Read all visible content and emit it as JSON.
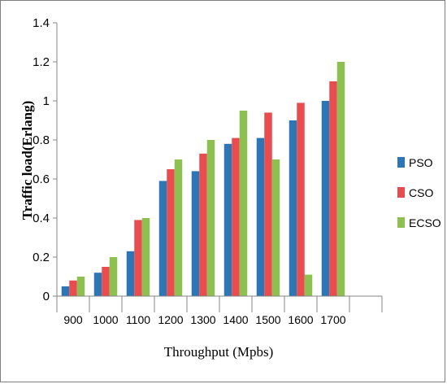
{
  "chart_data": {
    "type": "bar",
    "title": "",
    "xlabel": "Throughput (Mpbs)",
    "ylabel": "Traffic load(Erlang)",
    "categories": [
      "900",
      "1000",
      "1100",
      "1200",
      "1300",
      "1400",
      "1500",
      "1600",
      "1700"
    ],
    "ylim": [
      0,
      1.4
    ],
    "yticks": [
      "0",
      "0.2",
      "0.4",
      "0.6",
      "0.8",
      "1",
      "1.2",
      "1.4"
    ],
    "grid": false,
    "legend": "right",
    "series": [
      {
        "name": "PSO",
        "color": "#2e75b6",
        "values": [
          0.05,
          0.12,
          0.23,
          0.59,
          0.64,
          0.78,
          0.81,
          0.9,
          1.0
        ]
      },
      {
        "name": "CSO",
        "color": "#e84c4f",
        "values": [
          0.08,
          0.15,
          0.39,
          0.65,
          0.73,
          0.81,
          0.94,
          0.99,
          1.1
        ]
      },
      {
        "name": "ECSO",
        "color": "#8cc152",
        "values": [
          0.1,
          0.2,
          0.4,
          0.7,
          0.8,
          0.95,
          0.7,
          0.11,
          1.2
        ]
      }
    ]
  }
}
